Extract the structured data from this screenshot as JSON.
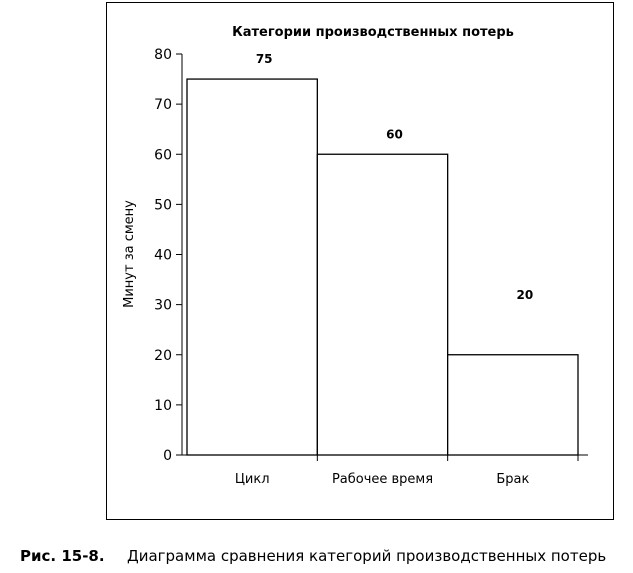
{
  "chart_data": {
    "type": "bar",
    "title": "Категории производственных потерь",
    "ylabel": "Минут за смену",
    "xlabel": "",
    "categories": [
      "Цикл",
      "Рабочее время",
      "Брак"
    ],
    "values": [
      75,
      60,
      20
    ],
    "data_labels": [
      "75",
      "60",
      "20"
    ],
    "ylim": [
      0,
      80
    ],
    "yticks": [
      0,
      10,
      20,
      30,
      40,
      50,
      60,
      70,
      80
    ],
    "grid": false,
    "legend": "none"
  },
  "caption": {
    "number": "Рис. 15-8.",
    "text": "Диаграмма сравнения категорий производственных потерь"
  }
}
